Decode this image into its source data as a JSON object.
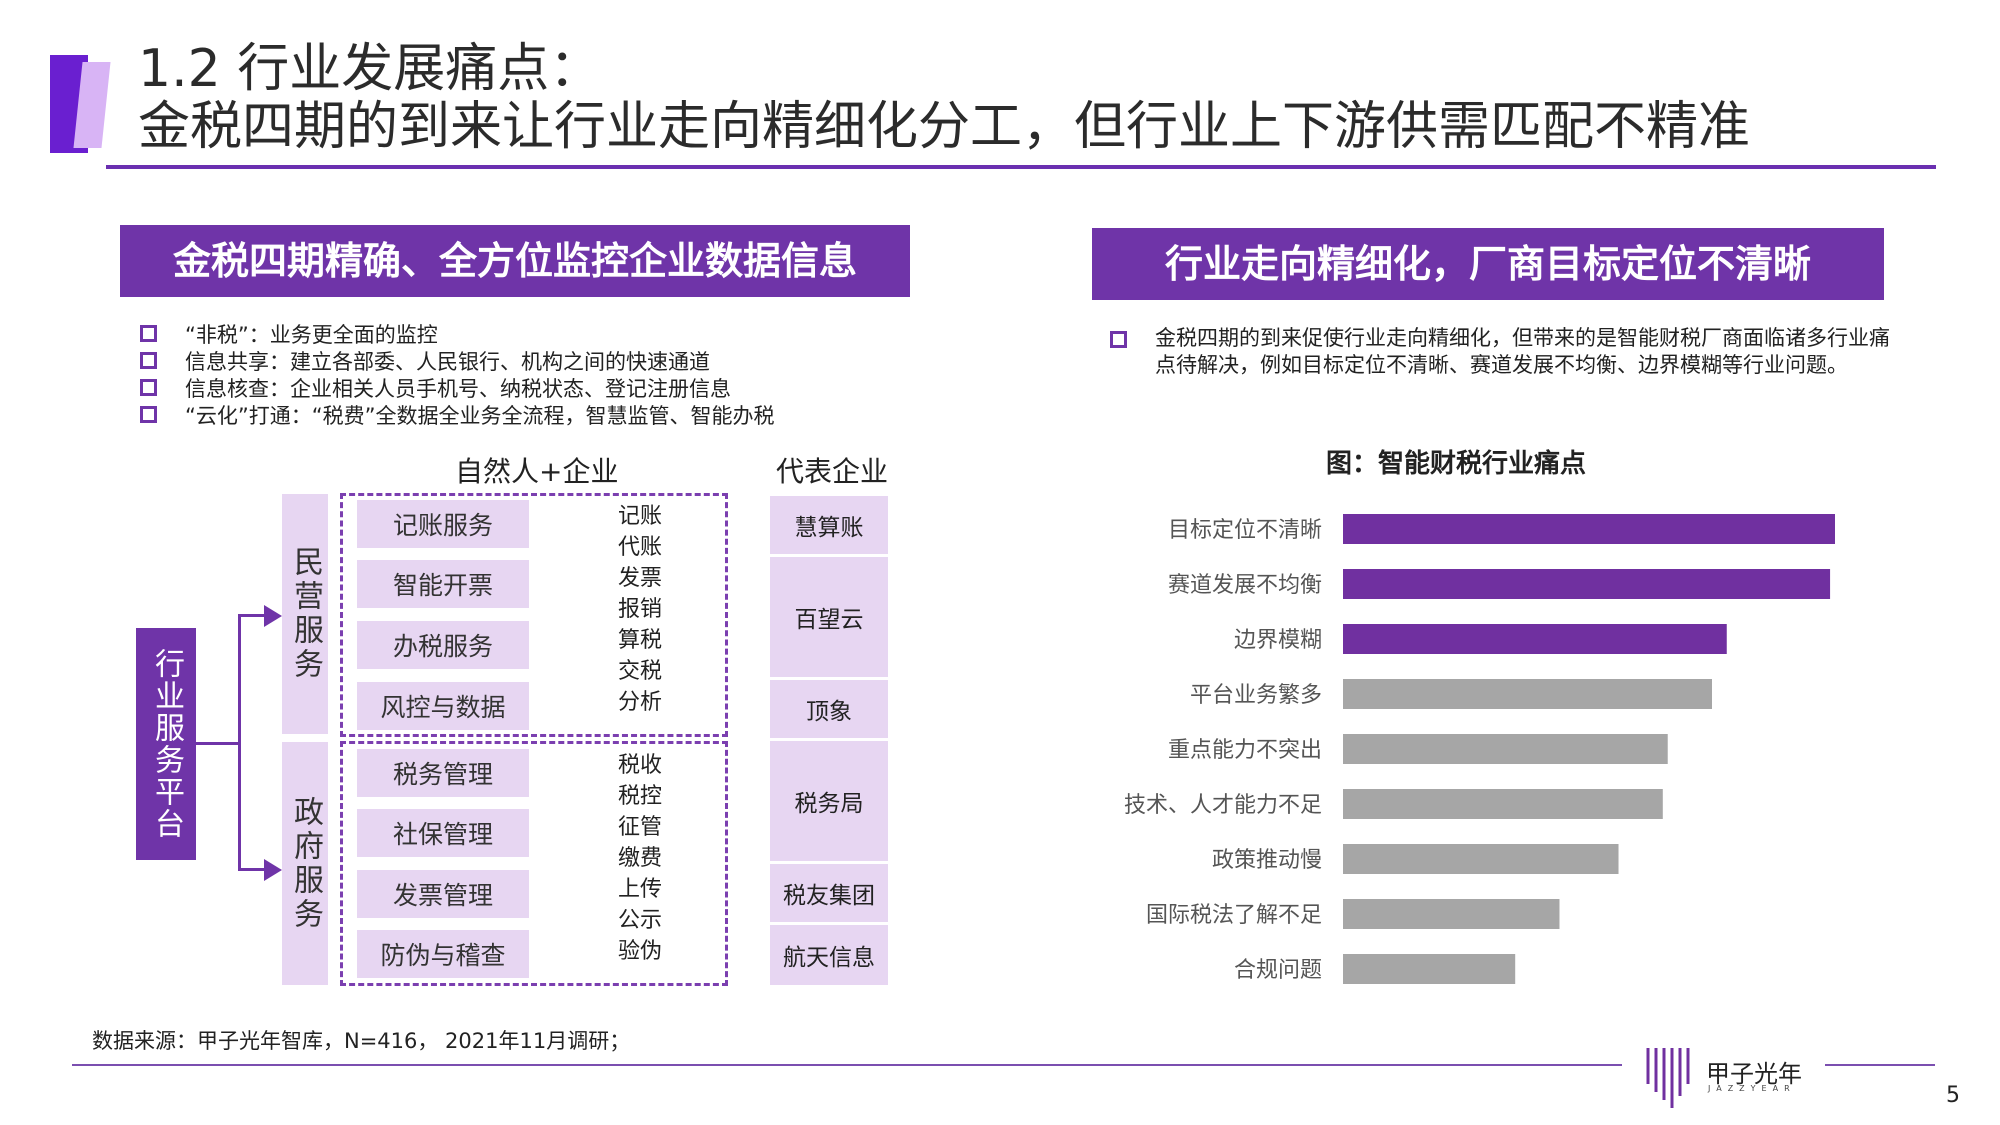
{
  "title": {
    "line1": "1.2 行业发展痛点：",
    "line2": "金税四期的到来让行业走向精细化分工，但行业上下游供需匹配不精准"
  },
  "left_panel": {
    "banner": "金税四期精确、全方位监控企业数据信息",
    "bullets": [
      "“非税”：业务更全面的监控",
      "信息共享：建立各部委、人民银行、机构之间的快速通道",
      "信息核查：企业相关人员手机号、纳税状态、登记注册信息",
      "“云化”打通：“税费”全数据全业务全流程，智慧监管、智能办税"
    ],
    "diagram": {
      "head_center": "自然人+企业",
      "head_right": "代表企业",
      "platform": "行业服务平台",
      "groups": [
        {
          "category": "民营服务",
          "services": [
            "记账服务",
            "智能开票",
            "办税服务",
            "风控与数据"
          ],
          "words": [
            "记账",
            "代账",
            "发票",
            "报销",
            "算税",
            "交税",
            "分析"
          ]
        },
        {
          "category": "政府服务",
          "services": [
            "税务管理",
            "社保管理",
            "发票管理",
            "防伪与稽查"
          ],
          "words": [
            "税收",
            "税控",
            "征管",
            "缴费",
            "上传",
            "公示",
            "验伪"
          ]
        }
      ],
      "companies": [
        "慧算账",
        "百望云",
        "顶象",
        "税务局",
        "税友集团",
        "航天信息"
      ]
    }
  },
  "right_panel": {
    "banner": "行业走向精细化，厂商目标定位不清晰",
    "bullet": "金税四期的到来促使行业走向精细化，但带来的是智能财税厂商面临诸多行业痛点待解决，例如目标定位不清晰、赛道发展不均衡、边界模糊等行业问题。",
    "chart_title": "图：智能财税行业痛点"
  },
  "chart_data": {
    "type": "bar",
    "orientation": "horizontal",
    "title": "图：智能财税行业痛点",
    "categories": [
      "目标定位不清晰",
      "赛道发展不均衡",
      "边界模糊",
      "平台业务繁多",
      "重点能力不突出",
      "技术、人才能力不足",
      "政策推动慢",
      "国际税法了解不足",
      "合规问题"
    ],
    "values": [
      100,
      99,
      78,
      75,
      66,
      65,
      56,
      44,
      35
    ],
    "value_unit": "relative",
    "highlight_colors": [
      "#7030a0",
      "#7030a0",
      "#7030a0",
      "#a6a6a6",
      "#a6a6a6",
      "#a6a6a6",
      "#a6a6a6",
      "#a6a6a6",
      "#a6a6a6"
    ],
    "xlim": [
      0,
      100
    ],
    "grid": false,
    "axis_labels_shown": false
  },
  "footer": {
    "source": "数据来源：甲子光年智库，N=416， 2021年11月调研；",
    "logo_text": "甲子光年",
    "logo_sub": "JAZZYEAR",
    "page": "5"
  },
  "colors": {
    "accent": "#6f34a8",
    "light_purple": "#e7d6f2",
    "bar_highlight": "#7030a0",
    "bar_gray": "#a6a6a6"
  }
}
